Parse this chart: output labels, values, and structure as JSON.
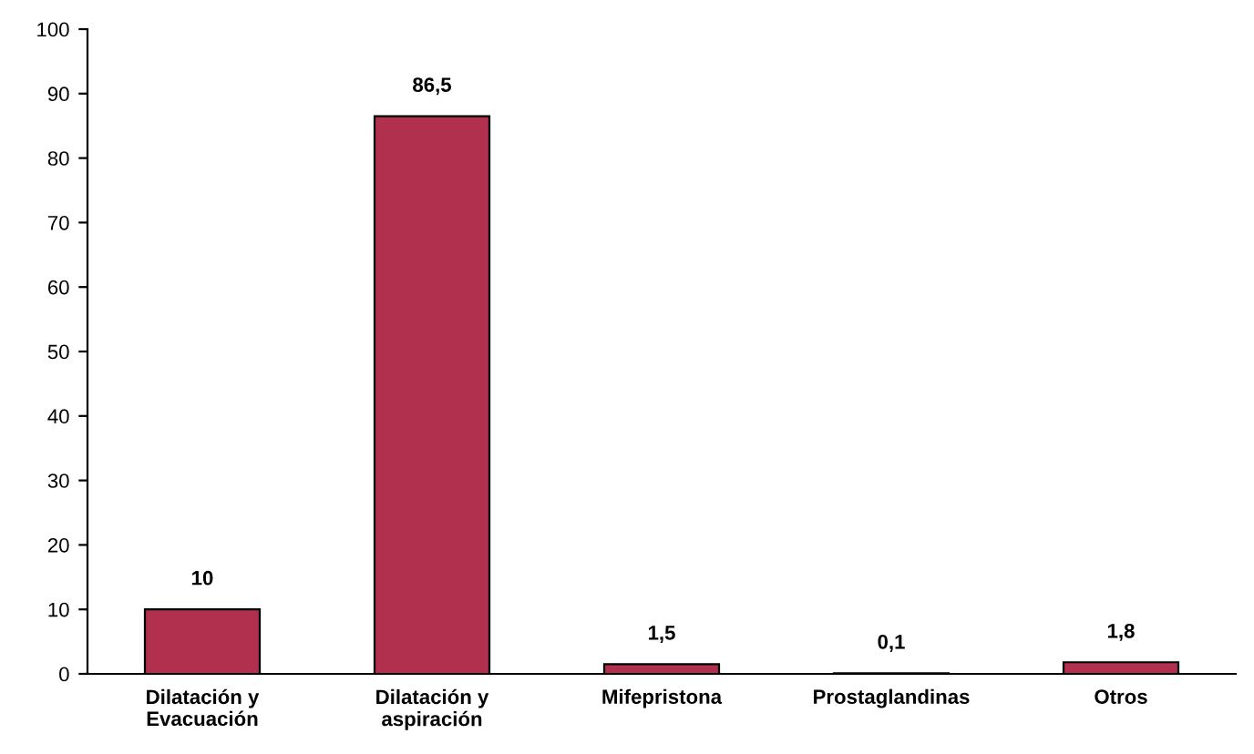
{
  "chart_data": {
    "type": "bar",
    "categories": [
      "Dilatación y\nEvacuación",
      "Dilatación y\naspiración",
      "Mifepristona",
      "Prostaglandinas",
      "Otros"
    ],
    "values": [
      10,
      86.5,
      1.5,
      0.1,
      1.8
    ],
    "value_labels": [
      "10",
      "86,5",
      "1,5",
      "0,1",
      "1,8"
    ],
    "color": "#b0304e",
    "ylim": [
      0,
      100
    ],
    "yticks": [
      0,
      10,
      20,
      30,
      40,
      50,
      60,
      70,
      80,
      90,
      100
    ],
    "grid": false,
    "legend": false
  }
}
